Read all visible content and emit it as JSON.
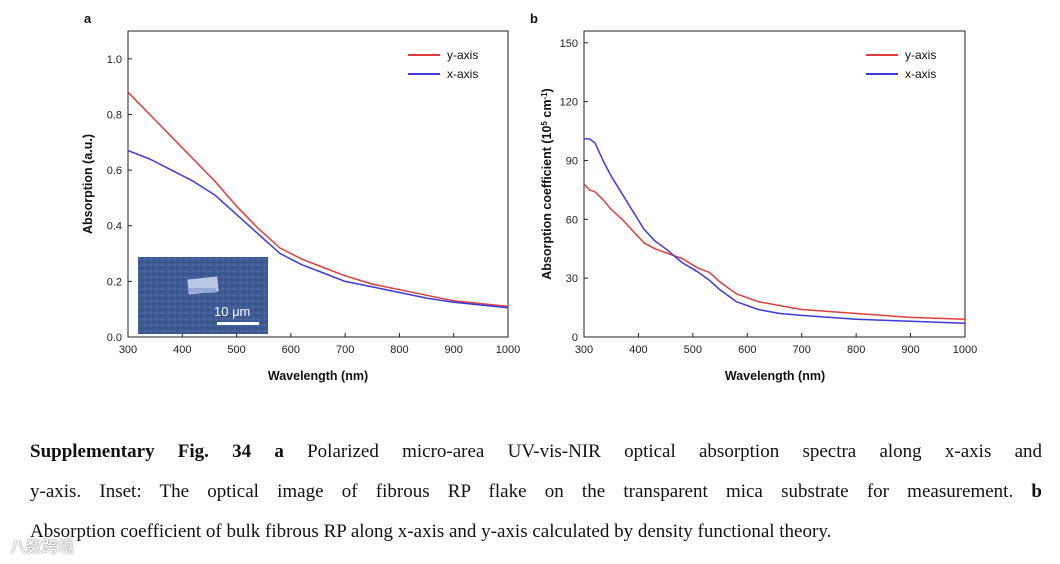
{
  "chart_data": [
    {
      "panel": "a",
      "type": "line",
      "xlabel": "Wavelength (nm)",
      "ylabel": "Absorption (a.u.)",
      "xlim": [
        300,
        1000
      ],
      "ylim": [
        0,
        1.1
      ],
      "xticks": [
        300,
        400,
        500,
        600,
        700,
        800,
        900,
        1000
      ],
      "yticks": [
        0.0,
        0.2,
        0.4,
        0.6,
        0.8,
        1.0
      ],
      "ytick_labels": [
        "0.0",
        "0.2",
        "0.4",
        "0.6",
        "0.8",
        "1.0"
      ],
      "legend": "top-right",
      "series": [
        {
          "name": "y-axis",
          "color": "#e03c3c",
          "x": [
            300,
            340,
            380,
            420,
            460,
            500,
            540,
            580,
            620,
            660,
            700,
            750,
            800,
            850,
            900,
            950,
            1000
          ],
          "y": [
            0.88,
            0.8,
            0.72,
            0.64,
            0.56,
            0.47,
            0.39,
            0.32,
            0.28,
            0.25,
            0.22,
            0.19,
            0.17,
            0.15,
            0.13,
            0.12,
            0.11
          ]
        },
        {
          "name": "x-axis",
          "color": "#3a3ae0",
          "x": [
            300,
            340,
            380,
            420,
            460,
            500,
            540,
            580,
            620,
            660,
            700,
            750,
            800,
            850,
            900,
            950,
            1000
          ],
          "y": [
            0.67,
            0.64,
            0.6,
            0.56,
            0.51,
            0.44,
            0.37,
            0.3,
            0.26,
            0.23,
            0.2,
            0.18,
            0.16,
            0.14,
            0.125,
            0.115,
            0.105
          ]
        }
      ],
      "inset": {
        "description_label": "10 μm"
      }
    },
    {
      "panel": "b",
      "type": "line",
      "xlabel": "Wavelength (nm)",
      "ylabel_main": "Absorption coefficient (10",
      "ylabel_sup1": "5",
      "ylabel_mid": " cm",
      "ylabel_sup2": "-1",
      "ylabel_end": ")",
      "xlim": [
        300,
        1000
      ],
      "ylim": [
        0,
        156
      ],
      "xticks": [
        300,
        400,
        500,
        600,
        700,
        800,
        900,
        1000
      ],
      "yticks": [
        0,
        30,
        60,
        90,
        120,
        150
      ],
      "legend": "top-right",
      "series": [
        {
          "name": "y-axis",
          "color": "#e03c3c",
          "x": [
            300,
            310,
            320,
            335,
            350,
            370,
            390,
            410,
            430,
            450,
            480,
            510,
            530,
            550,
            580,
            620,
            660,
            700,
            800,
            900,
            1000
          ],
          "y": [
            78,
            75,
            74,
            70,
            65,
            60,
            54,
            48,
            45,
            43,
            40,
            35,
            33,
            28,
            22,
            18,
            16,
            14,
            12,
            10,
            9
          ]
        },
        {
          "name": "x-axis",
          "color": "#3a3ae0",
          "x": [
            300,
            310,
            320,
            335,
            350,
            370,
            390,
            410,
            430,
            450,
            480,
            510,
            530,
            550,
            580,
            620,
            660,
            700,
            800,
            900,
            1000
          ],
          "y": [
            101,
            101,
            99,
            90,
            82,
            73,
            64,
            55,
            49,
            45,
            38,
            33,
            29,
            24,
            18,
            14,
            12,
            11,
            9,
            8,
            7
          ]
        }
      ]
    }
  ],
  "caption": {
    "lines": [
      {
        "bold": "Supplementary Fig. 34 a",
        "text": " Polarized micro-area UV-vis-NIR optical absorption spectra along x-axis and"
      },
      {
        "text": "y-axis. Inset: The optical image of fibrous RP flake on the transparent mica substrate for measurement. ",
        "bold_end": "b"
      },
      {
        "text": "Absorption coefficient of bulk fibrous RP along x-axis and y-axis calculated by density functional theory."
      }
    ]
  },
  "watermark": "八数跨境"
}
